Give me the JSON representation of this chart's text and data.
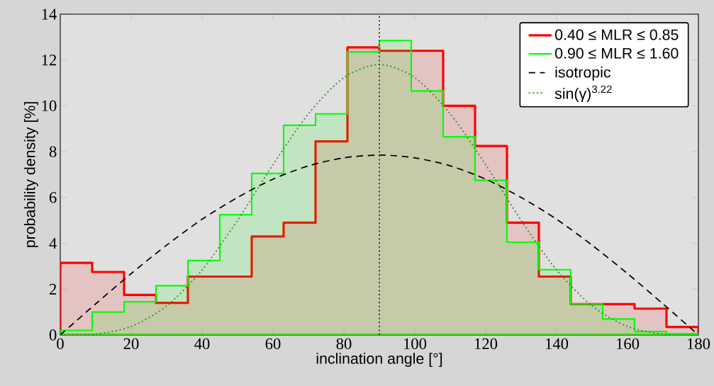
{
  "chart_data": {
    "type": "histogram",
    "xlabel": "inclination angle [°]",
    "ylabel": "probability density [%]",
    "bins": [
      0,
      9,
      18,
      27,
      36,
      45,
      54,
      63,
      72,
      81,
      90,
      99,
      108,
      117,
      126,
      135,
      144,
      153,
      162,
      171,
      180
    ],
    "xlim": [
      0,
      180
    ],
    "ylim": [
      0,
      14
    ],
    "xticks": [
      0,
      20,
      40,
      60,
      80,
      100,
      120,
      140,
      160,
      180
    ],
    "yticks": [
      0,
      2,
      4,
      6,
      8,
      10,
      12,
      14
    ],
    "legend": "top right",
    "grid": false,
    "ref_lines": [
      {
        "axis": "x",
        "value": 90,
        "color": "#333333",
        "line_style": "dotted"
      }
    ],
    "series": [
      {
        "name": "0.40 ≤ MLR ≤ 0.85",
        "color": "#ff0000",
        "values": [
          3.15,
          2.75,
          1.75,
          1.4,
          2.55,
          2.55,
          4.3,
          4.9,
          8.45,
          12.55,
          12.4,
          12.4,
          10.0,
          8.25,
          4.9,
          2.55,
          1.35,
          1.35,
          1.15,
          0.35
        ]
      },
      {
        "name": "0.90 ≤ MLR ≤ 1.60",
        "color": "#00ff00",
        "values": [
          0.2,
          1.0,
          1.45,
          2.15,
          3.25,
          5.25,
          7.05,
          9.15,
          9.65,
          12.35,
          12.85,
          10.65,
          8.65,
          6.75,
          4.05,
          2.85,
          1.35,
          0.7,
          0.15,
          0.05
        ]
      },
      {
        "name": "isotropic",
        "type": "line",
        "color": "#000000",
        "line_style": "dashed",
        "x": [
          0,
          10,
          20,
          30,
          40,
          50,
          60,
          70,
          80,
          90,
          100,
          110,
          120,
          130,
          140,
          150,
          160,
          170,
          180
        ],
        "values": [
          0,
          1.36,
          2.68,
          3.92,
          5.05,
          6.0,
          6.8,
          7.38,
          7.73,
          7.85,
          7.73,
          7.38,
          6.8,
          6.0,
          5.05,
          3.92,
          2.68,
          1.36,
          0
        ]
      },
      {
        "name": "sin(γ)$^{3.22}$",
        "type": "line",
        "color": "#229922",
        "line_style": "dotted",
        "x": [
          0,
          10,
          20,
          30,
          40,
          50,
          60,
          70,
          80,
          90,
          100,
          110,
          120,
          130,
          140,
          150,
          160,
          170,
          180
        ],
        "values": [
          0,
          0.04,
          0.37,
          1.27,
          2.84,
          5.0,
          7.43,
          9.65,
          11.23,
          11.8,
          11.23,
          9.65,
          7.43,
          5.0,
          2.84,
          1.27,
          0.37,
          0.04,
          0
        ]
      }
    ]
  }
}
